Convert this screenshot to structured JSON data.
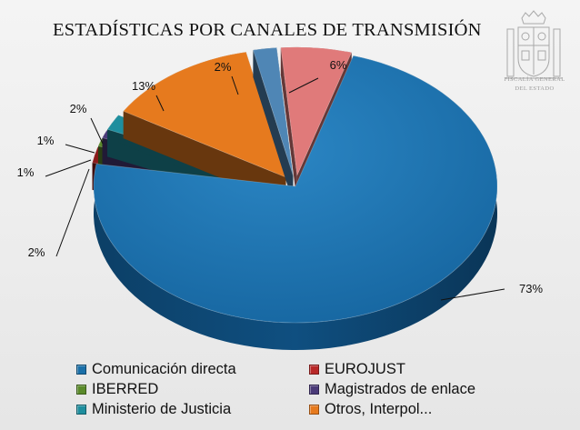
{
  "header": {
    "title": "ESTADÍSTICAS POR CANALES DE TRANSMISIÓN",
    "logo_text_line1": "FISCALÍA GENERAL",
    "logo_text_line2": "DEL ESTADO"
  },
  "chart_data": {
    "type": "pie",
    "style": "3d-exploded",
    "title": "ESTADÍSTICAS POR CANALES DE TRANSMISIÓN",
    "legend_position": "bottom",
    "series": [
      {
        "name": "Comunicación directa",
        "value": 73,
        "label": "73%",
        "color": "#1a6fa8"
      },
      {
        "name": "EUROJUST",
        "value": 2,
        "label": "2%",
        "color": "#8a1a1a"
      },
      {
        "name": "IBERRED",
        "value": 1,
        "label": "1%",
        "color": "#5a8a2a"
      },
      {
        "name": "Magistrados de enlace",
        "value": 1,
        "label": "1%",
        "color": "#4a3a78"
      },
      {
        "name": "Ministerio de Justicia",
        "value": 2,
        "label": "2%",
        "color": "#1e8e9e"
      },
      {
        "name": "Otros, Interpol...",
        "value": 13,
        "label": "13%",
        "color": "#e67a1e"
      },
      {
        "name": "",
        "value": 2,
        "label": "2%",
        "color": "#4f86b5"
      },
      {
        "name": "",
        "value": 6,
        "label": "6%",
        "color": "#e07a7a"
      }
    ]
  },
  "legend": [
    {
      "label": "Comunicación directa",
      "color": "#1a6fa8"
    },
    {
      "label": "EUROJUST",
      "color": "#b82828"
    },
    {
      "label": "IBERRED",
      "color": "#5a8a2a"
    },
    {
      "label": "Magistrados de enlace",
      "color": "#4a3a78"
    },
    {
      "label": "Ministerio de Justicia",
      "color": "#1e8e9e"
    },
    {
      "label": "Otros, Interpol...",
      "color": "#e67a1e"
    }
  ]
}
